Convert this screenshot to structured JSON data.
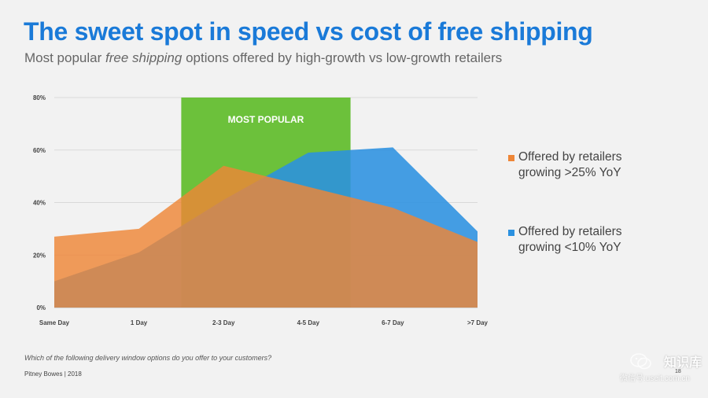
{
  "title": "The sweet spot in speed vs cost of free shipping",
  "subtitle": {
    "before": "Most popular ",
    "emphasis": "free shipping",
    "after": " options offered by high-growth vs low-growth retailers"
  },
  "footnote": "Which of the following delivery window options do you offer to your customers?",
  "footer": "Pitney Bowes | 2018",
  "page_number": "18",
  "watermark": {
    "name": "知识库",
    "url": "微信号:useit.com.cn"
  },
  "chart_data": {
    "type": "area",
    "categories": [
      "Same Day",
      "1 Day",
      "2-3 Day",
      "4-5 Day",
      "6-7 Day",
      ">7 Day"
    ],
    "y_ticks": [
      "0%",
      "20%",
      "40%",
      "60%",
      "80%"
    ],
    "ylim": [
      0,
      80
    ],
    "grid": true,
    "legend_position": "right",
    "highlight": {
      "label": "MOST POPULAR",
      "from": "2-3 Day",
      "to": "4-5 Day",
      "color": "#6cc13b"
    },
    "series": [
      {
        "name": "Offered by retailers growing >25% YoY",
        "color": "#ee8637",
        "values": [
          27,
          30,
          54,
          46,
          38,
          25
        ]
      },
      {
        "name": "Offered by retailers growing <10% YoY",
        "color": "#2b91e0",
        "values": [
          10,
          21,
          41,
          59,
          61,
          29
        ]
      }
    ]
  }
}
